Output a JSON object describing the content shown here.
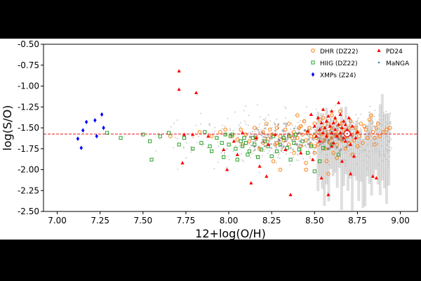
{
  "chart_data": {
    "type": "scatter",
    "title": "",
    "xlabel": "12+log(O/H)",
    "ylabel": "log(S/O)",
    "xlim": [
      6.92,
      9.1
    ],
    "ylim": [
      -2.5,
      -0.5
    ],
    "xticks": [
      "7.00",
      "7.25",
      "7.50",
      "7.75",
      "8.00",
      "8.25",
      "8.50",
      "8.75",
      "9.00"
    ],
    "yticks": [
      "-0.50",
      "-0.75",
      "-1.00",
      "-1.25",
      "-1.50",
      "-1.75",
      "-2.00",
      "-2.25",
      "-2.50"
    ],
    "grid": false,
    "legend_position": "top-right",
    "reference_line": {
      "y": -1.575,
      "style": "dashed",
      "color": "#e41a1c"
    },
    "solar_symbol": {
      "x": 8.69,
      "y": -1.57
    },
    "series": [
      {
        "name": "DHR (DZ22)",
        "marker": "open-circle",
        "color": "#ff7f0e",
        "points": [
          [
            7.66,
            -1.6
          ],
          [
            7.83,
            -1.55
          ],
          [
            7.9,
            -1.6
          ],
          [
            7.95,
            -1.55
          ],
          [
            7.98,
            -1.52
          ],
          [
            8.02,
            -1.6
          ],
          [
            8.05,
            -1.64
          ],
          [
            8.07,
            -1.52
          ],
          [
            8.08,
            -1.7
          ],
          [
            8.1,
            -1.58
          ],
          [
            8.12,
            -1.66
          ],
          [
            8.15,
            -1.5
          ],
          [
            8.16,
            -1.62
          ],
          [
            8.18,
            -1.75
          ],
          [
            8.2,
            -1.68
          ],
          [
            8.2,
            -1.55
          ],
          [
            8.22,
            -1.45
          ],
          [
            8.23,
            -1.63
          ],
          [
            8.25,
            -1.58
          ],
          [
            8.26,
            -1.9
          ],
          [
            8.27,
            -1.7
          ],
          [
            8.28,
            -1.5
          ],
          [
            8.3,
            -1.6
          ],
          [
            8.3,
            -2.0
          ],
          [
            8.32,
            -1.65
          ],
          [
            8.33,
            -1.52
          ],
          [
            8.35,
            -1.7
          ],
          [
            8.35,
            -1.45
          ],
          [
            8.36,
            -1.6
          ],
          [
            8.38,
            -1.55
          ],
          [
            8.38,
            -1.8
          ],
          [
            8.4,
            -1.62
          ],
          [
            8.4,
            -1.35
          ],
          [
            8.41,
            -1.5
          ],
          [
            8.42,
            -1.72
          ],
          [
            8.43,
            -1.58
          ],
          [
            8.44,
            -1.42
          ],
          [
            8.45,
            -1.65
          ],
          [
            8.45,
            -1.92
          ],
          [
            8.46,
            -1.55
          ],
          [
            8.47,
            -1.5
          ],
          [
            8.48,
            -1.7
          ],
          [
            8.48,
            -1.6
          ],
          [
            8.5,
            -1.45
          ],
          [
            8.5,
            -1.8
          ],
          [
            8.51,
            -1.62
          ],
          [
            8.52,
            -1.55
          ],
          [
            8.52,
            -1.7
          ],
          [
            8.53,
            -1.4
          ],
          [
            8.54,
            -1.58
          ],
          [
            8.55,
            -1.65
          ],
          [
            8.55,
            -1.5
          ],
          [
            8.56,
            -1.75
          ],
          [
            8.57,
            -1.6
          ],
          [
            8.58,
            -1.45
          ],
          [
            8.58,
            -1.55
          ],
          [
            8.59,
            -1.68
          ],
          [
            8.6,
            -1.5
          ],
          [
            8.6,
            -1.62
          ],
          [
            8.61,
            -1.8
          ],
          [
            8.62,
            -1.58
          ],
          [
            8.62,
            -1.42
          ],
          [
            8.63,
            -1.7
          ],
          [
            8.64,
            -1.55
          ],
          [
            8.65,
            -1.6
          ],
          [
            8.65,
            -1.48
          ],
          [
            8.66,
            -1.65
          ],
          [
            8.67,
            -1.52
          ],
          [
            8.68,
            -1.75
          ],
          [
            8.69,
            -1.6
          ],
          [
            8.7,
            -1.5
          ],
          [
            8.7,
            -1.68
          ],
          [
            8.71,
            -1.42
          ],
          [
            8.72,
            -1.58
          ],
          [
            8.73,
            -1.65
          ],
          [
            8.74,
            -1.5
          ],
          [
            8.75,
            -1.72
          ],
          [
            8.75,
            -1.55
          ],
          [
            8.76,
            -1.6
          ],
          [
            8.77,
            -1.45
          ],
          [
            8.78,
            -1.68
          ],
          [
            8.8,
            -1.52
          ],
          [
            8.81,
            -1.62
          ],
          [
            8.82,
            -1.4
          ],
          [
            8.84,
            -1.55
          ],
          [
            8.85,
            -1.7
          ],
          [
            8.86,
            -1.5
          ],
          [
            8.88,
            -1.6
          ],
          [
            8.9,
            -1.55
          ],
          [
            8.87,
            -1.45
          ],
          [
            8.83,
            -1.35
          ],
          [
            8.79,
            -1.48
          ],
          [
            8.65,
            -1.3
          ],
          [
            8.6,
            -1.35
          ],
          [
            8.55,
            -1.38
          ],
          [
            8.45,
            -2.0
          ],
          [
            8.57,
            -1.9
          ],
          [
            8.63,
            -1.86
          ],
          [
            8.72,
            -1.82
          ],
          [
            8.92,
            -1.52
          ],
          [
            8.94,
            -1.5
          ],
          [
            8.5,
            -1.72
          ],
          [
            8.42,
            -1.48
          ],
          [
            8.37,
            -1.62
          ],
          [
            8.28,
            -1.68
          ],
          [
            8.24,
            -1.52
          ],
          [
            8.58,
            -2.05
          ],
          [
            8.85,
            -1.62
          ],
          [
            8.5,
            -1.6
          ],
          [
            8.66,
            -1.44
          ]
        ]
      },
      {
        "name": "HIIG (DZ22)",
        "marker": "open-square",
        "color": "#2ca02c",
        "points": [
          [
            7.29,
            -1.56
          ],
          [
            7.37,
            -1.62
          ],
          [
            7.5,
            -1.58
          ],
          [
            7.54,
            -1.66
          ],
          [
            7.55,
            -1.88
          ],
          [
            7.6,
            -1.6
          ],
          [
            7.65,
            -1.56
          ],
          [
            7.71,
            -1.7
          ],
          [
            7.74,
            -1.62
          ],
          [
            7.79,
            -1.75
          ],
          [
            7.84,
            -1.68
          ],
          [
            7.86,
            -1.55
          ],
          [
            7.89,
            -1.72
          ],
          [
            7.9,
            -1.78
          ],
          [
            7.93,
            -1.62
          ],
          [
            7.96,
            -1.68
          ],
          [
            7.97,
            -1.85
          ],
          [
            8.0,
            -1.7
          ],
          [
            8.01,
            -1.6
          ],
          [
            8.02,
            -1.58
          ],
          [
            8.04,
            -1.75
          ],
          [
            8.05,
            -1.88
          ],
          [
            8.07,
            -1.66
          ],
          [
            8.08,
            -1.72
          ],
          [
            8.1,
            -1.68
          ],
          [
            8.11,
            -1.82
          ],
          [
            8.12,
            -1.78
          ],
          [
            8.14,
            -1.62
          ],
          [
            8.15,
            -1.7
          ],
          [
            8.17,
            -1.85
          ],
          [
            8.19,
            -1.76
          ],
          [
            8.21,
            -1.66
          ],
          [
            8.23,
            -1.72
          ],
          [
            8.26,
            -1.6
          ],
          [
            8.28,
            -1.78
          ],
          [
            8.3,
            -1.7
          ],
          [
            8.32,
            -1.62
          ],
          [
            8.34,
            -1.74
          ],
          [
            8.36,
            -1.88
          ],
          [
            8.38,
            -1.68
          ],
          [
            8.39,
            -1.58
          ],
          [
            8.41,
            -1.76
          ],
          [
            8.43,
            -1.66
          ],
          [
            8.46,
            -1.8
          ],
          [
            8.48,
            -1.72
          ],
          [
            8.5,
            -2.02
          ],
          [
            8.53,
            -1.9
          ],
          [
            8.55,
            -1.74
          ],
          [
            8.6,
            -1.7
          ],
          [
            8.64,
            -1.82
          ],
          [
            8.35,
            -1.6
          ],
          [
            8.25,
            -1.84
          ],
          [
            8.09,
            -1.62
          ],
          [
            7.98,
            -1.58
          ]
        ]
      },
      {
        "name": "XMPs (Z24)",
        "marker": "diamond",
        "color": "#0000ff",
        "points": [
          [
            7.12,
            -1.63
          ],
          [
            7.14,
            -1.74
          ],
          [
            7.15,
            -1.53
          ],
          [
            7.17,
            -1.43
          ],
          [
            7.22,
            -1.41
          ],
          [
            7.23,
            -1.6
          ],
          [
            7.26,
            -1.34
          ],
          [
            7.27,
            -1.5
          ]
        ]
      },
      {
        "name": "PD24",
        "marker": "triangle",
        "color": "#ff0000",
        "points": [
          [
            7.71,
            -0.82
          ],
          [
            7.71,
            -1.04
          ],
          [
            7.81,
            -1.08
          ],
          [
            7.74,
            -1.58
          ],
          [
            7.79,
            -1.58
          ],
          [
            7.73,
            -1.92
          ],
          [
            7.88,
            -1.6
          ],
          [
            7.97,
            -1.76
          ],
          [
            7.99,
            -2.0
          ],
          [
            8.03,
            -1.66
          ],
          [
            8.05,
            -1.82
          ],
          [
            8.08,
            -1.56
          ],
          [
            8.13,
            -2.16
          ],
          [
            8.16,
            -1.62
          ],
          [
            8.18,
            -1.96
          ],
          [
            8.22,
            -2.08
          ],
          [
            8.23,
            -1.7
          ],
          [
            8.27,
            -1.58
          ],
          [
            8.33,
            -1.76
          ],
          [
            8.36,
            -2.3
          ],
          [
            8.42,
            -1.8
          ],
          [
            8.46,
            -1.54
          ],
          [
            8.48,
            -1.34
          ],
          [
            8.5,
            -1.48
          ],
          [
            8.51,
            -1.6
          ],
          [
            8.52,
            -1.38
          ],
          [
            8.53,
            -1.52
          ],
          [
            8.54,
            -1.44
          ],
          [
            8.55,
            -1.56
          ],
          [
            8.55,
            -1.28
          ],
          [
            8.56,
            -1.5
          ],
          [
            8.57,
            -1.42
          ],
          [
            8.57,
            -1.6
          ],
          [
            8.58,
            -1.36
          ],
          [
            8.59,
            -1.48
          ],
          [
            8.6,
            -1.56
          ],
          [
            8.6,
            -1.3
          ],
          [
            8.61,
            -1.44
          ],
          [
            8.62,
            -1.52
          ],
          [
            8.62,
            -1.38
          ],
          [
            8.63,
            -1.6
          ],
          [
            8.64,
            -1.46
          ],
          [
            8.65,
            -1.34
          ],
          [
            8.65,
            -1.56
          ],
          [
            8.66,
            -1.5
          ],
          [
            8.67,
            -1.42
          ],
          [
            8.67,
            -1.62
          ],
          [
            8.68,
            -1.46
          ],
          [
            8.69,
            -1.52
          ],
          [
            8.7,
            -1.38
          ],
          [
            8.71,
            -1.58
          ],
          [
            8.71,
            -1.7
          ],
          [
            8.72,
            -1.48
          ],
          [
            8.73,
            -1.84
          ],
          [
            8.74,
            -1.62
          ],
          [
            8.75,
            -1.55
          ],
          [
            8.58,
            -2.3
          ],
          [
            8.54,
            -2.1
          ],
          [
            8.49,
            -1.88
          ],
          [
            8.66,
            -1.9
          ],
          [
            8.71,
            -2.05
          ],
          [
            8.84,
            -2.08
          ],
          [
            8.86,
            -2.1
          ],
          [
            8.6,
            -1.72
          ],
          [
            8.53,
            -1.66
          ],
          [
            8.64,
            -1.2
          ],
          [
            8.61,
            -1.68
          ],
          [
            8.68,
            -1.66
          ]
        ]
      },
      {
        "name": "MaNGA",
        "marker": "dot",
        "color": "#1f77b4",
        "points": []
      }
    ]
  }
}
